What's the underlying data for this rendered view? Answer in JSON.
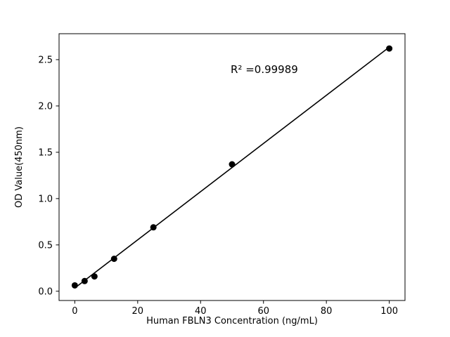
{
  "chart_data": {
    "type": "scatter",
    "x": [
      0,
      3.125,
      6.25,
      12.5,
      25,
      50,
      100
    ],
    "y": [
      0.063,
      0.11,
      0.16,
      0.35,
      0.69,
      1.37,
      2.62
    ],
    "title": "",
    "xlabel": "Human FBLN3 Concentration (ng/mL)",
    "ylabel": "OD Value(450nm)",
    "annotation": "R² =0.99989",
    "xlim": [
      -5,
      105
    ],
    "ylim": [
      -0.1,
      2.78
    ],
    "xticks": [
      0,
      20,
      40,
      60,
      80,
      100
    ],
    "yticks": [
      0.0,
      0.5,
      1.0,
      1.5,
      2.0,
      2.5
    ],
    "marker_color": "#000000",
    "line_color": "#000000",
    "background_color": "#ffffff",
    "legend": "none",
    "grid": false
  }
}
